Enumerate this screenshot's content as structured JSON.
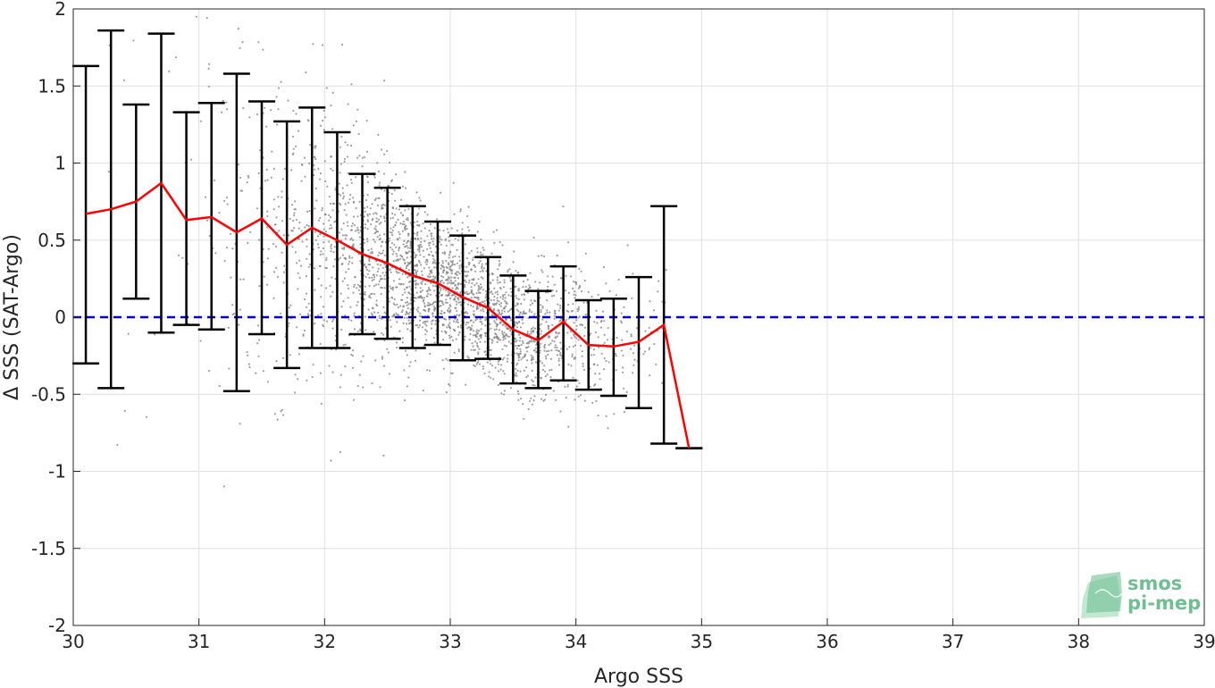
{
  "chart_data": {
    "type": "scatter",
    "xlabel": "Argo SSS",
    "ylabel": "Δ SSS (SAT-Argo)",
    "xlim": [
      30,
      39
    ],
    "ylim": [
      -2,
      2
    ],
    "xticks": [
      "30",
      "31",
      "32",
      "33",
      "34",
      "35",
      "36",
      "37",
      "38",
      "39"
    ],
    "yticks": [
      "-2",
      "-1.5",
      "-1",
      "-0.5",
      "0",
      "0.5",
      "1",
      "1.5",
      "2"
    ],
    "grid": true,
    "reference_line": {
      "y": 0,
      "style": "dashed",
      "color": "#0000cc"
    },
    "series": [
      {
        "kind": "scatter",
        "color": "#808080",
        "description_note": "dense cloud of individual match-up points, trending from about +1 at SSS 30 down to about -0.3 at SSS 34"
      },
      {
        "kind": "line_with_errorbars",
        "color": "#ff0000",
        "errorbar_color": "#000000",
        "x": [
          30.1,
          30.3,
          30.5,
          30.7,
          30.9,
          31.1,
          31.3,
          31.5,
          31.7,
          31.9,
          32.1,
          32.3,
          32.5,
          32.7,
          32.9,
          33.1,
          33.3,
          33.5,
          33.7,
          33.9,
          34.1,
          34.3,
          34.5,
          34.7,
          34.9
        ],
        "y": [
          0.67,
          0.7,
          0.75,
          0.87,
          0.63,
          0.65,
          0.55,
          0.64,
          0.47,
          0.58,
          0.5,
          0.41,
          0.35,
          0.27,
          0.22,
          0.13,
          0.06,
          -0.08,
          -0.15,
          -0.03,
          -0.18,
          -0.19,
          -0.16,
          -0.05,
          -0.85
        ],
        "lower": [
          -0.3,
          -0.46,
          0.12,
          -0.1,
          -0.05,
          -0.08,
          -0.48,
          -0.11,
          -0.33,
          -0.2,
          -0.2,
          -0.11,
          -0.14,
          -0.2,
          -0.18,
          -0.28,
          -0.27,
          -0.43,
          -0.46,
          -0.41,
          -0.47,
          -0.51,
          -0.59,
          -0.82,
          -0.85
        ],
        "upper": [
          1.63,
          1.86,
          1.38,
          1.84,
          1.33,
          1.39,
          1.58,
          1.4,
          1.27,
          1.36,
          1.2,
          0.93,
          0.84,
          0.72,
          0.62,
          0.53,
          0.39,
          0.27,
          0.17,
          0.33,
          0.11,
          0.12,
          0.26,
          0.72,
          -0.85
        ]
      }
    ],
    "logo": {
      "line1": "smos",
      "line2": "pi-mep"
    }
  },
  "colors": {
    "scatter": "#808080",
    "mean_line": "#ff0000",
    "errorbar": "#000000",
    "zero_line": "#0000cc",
    "grid": "#e0e0e0",
    "axis": "#262626",
    "logo": "#6fbf93"
  }
}
